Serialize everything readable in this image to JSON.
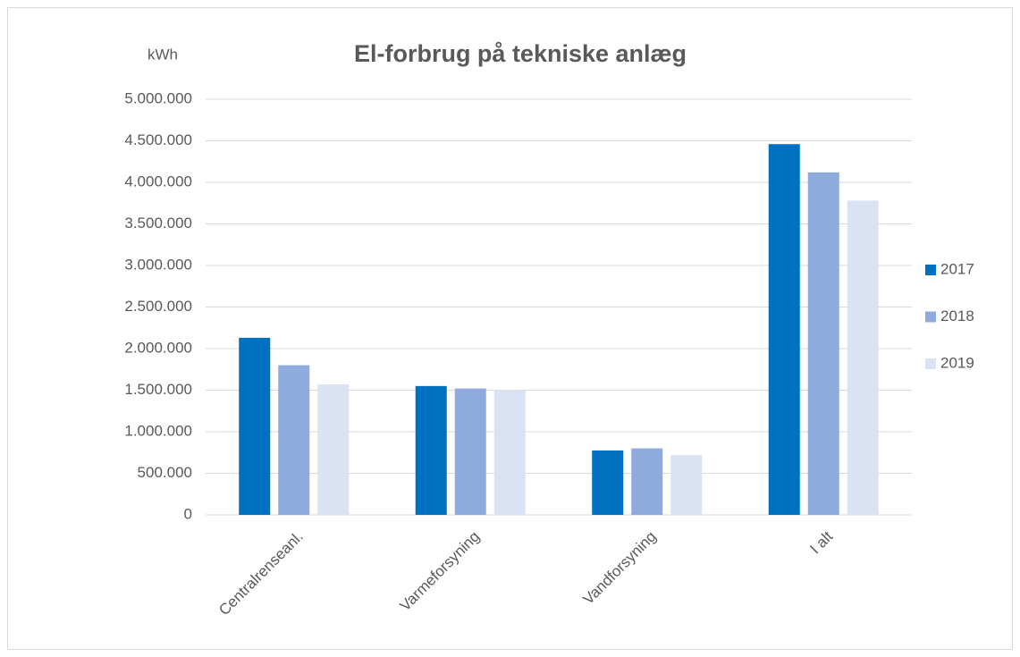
{
  "chart_data": {
    "type": "bar",
    "title": "El-forbrug på tekniske anlæg",
    "y_label": "kWh",
    "categories": [
      "Centralrenseanl.",
      "Varmeforsyning",
      "Vandforsyning",
      "I alt"
    ],
    "series": [
      {
        "name": "2017",
        "color": "#0070c0",
        "values": [
          2130000,
          1550000,
          775000,
          4460000
        ]
      },
      {
        "name": "2018",
        "color": "#8faadc",
        "values": [
          1800000,
          1520000,
          800000,
          4120000
        ]
      },
      {
        "name": "2019",
        "color": "#dae3f3",
        "values": [
          1570000,
          1500000,
          720000,
          3780000
        ]
      }
    ],
    "ylim": [
      0,
      5000000
    ],
    "yticks": [
      0,
      {
        "value": 500000,
        "label": "500.000"
      },
      {
        "value": 1000000,
        "label": "1.000.000"
      },
      {
        "value": 1500000,
        "label": "1.500.000"
      },
      {
        "value": 2000000,
        "label": "2.000.000"
      },
      {
        "value": 2500000,
        "label": "2.500.000"
      },
      {
        "value": 3000000,
        "label": "3.000.000"
      },
      {
        "value": 3500000,
        "label": "3.500.000"
      },
      {
        "value": 4000000,
        "label": "4.000.000"
      },
      {
        "value": 4500000,
        "label": "4.500.000"
      },
      {
        "value": 5000000,
        "label": "5.000.000"
      }
    ],
    "grid": true,
    "legend": "right"
  }
}
